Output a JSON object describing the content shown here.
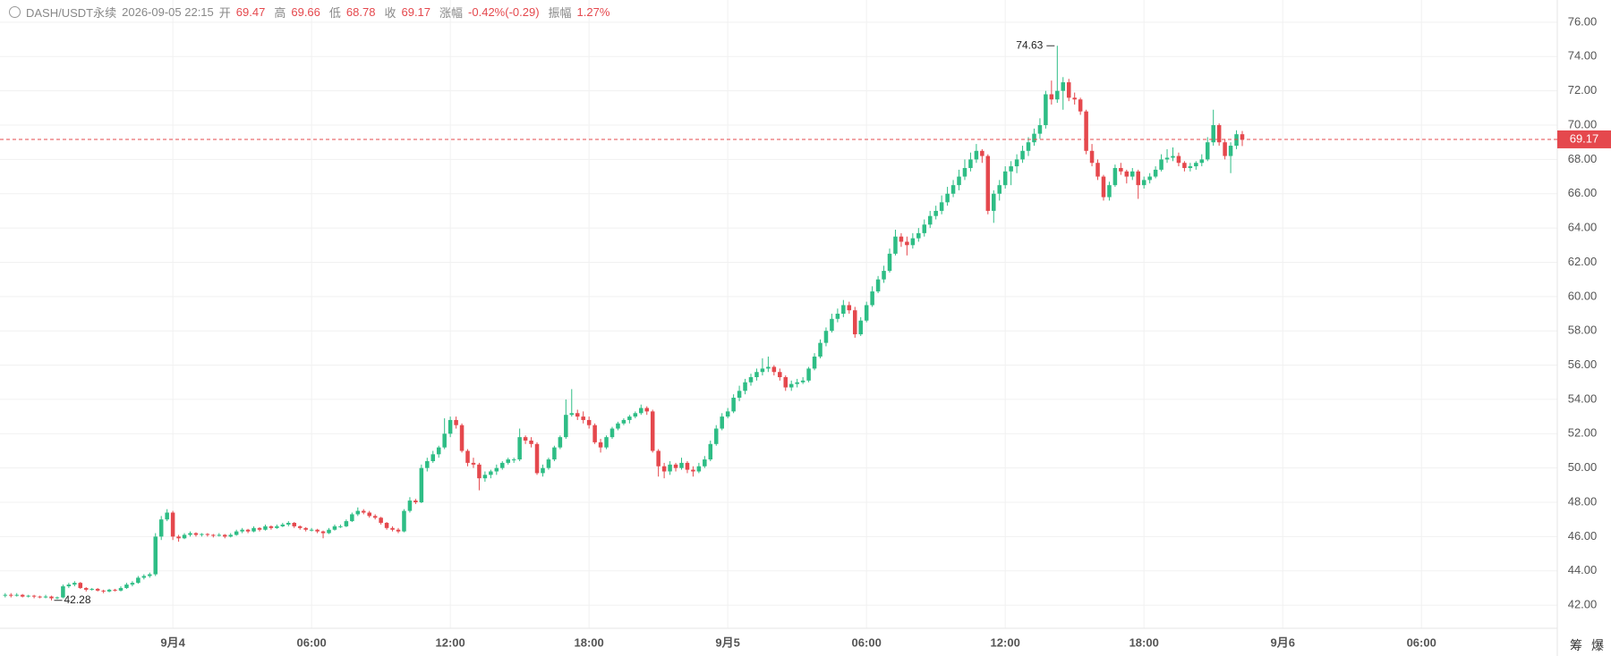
{
  "header": {
    "symbol": "DASH/USDT永续",
    "time": "2026-09-05 22:15",
    "fields": [
      {
        "label": "开",
        "value": "69.47"
      },
      {
        "label": "高",
        "value": "69.66"
      },
      {
        "label": "低",
        "value": "68.78"
      },
      {
        "label": "收",
        "value": "69.17"
      },
      {
        "label": "涨幅",
        "value": "-0.42%(-0.29)"
      },
      {
        "label": "振幅",
        "value": "1.27%"
      }
    ]
  },
  "footer_buttons": [
    "筹",
    "爆"
  ],
  "chart_data": {
    "type": "candlestick",
    "up_color": "#2ebd85",
    "down_color": "#e5484d",
    "grid": true,
    "xlim": [
      -0.9,
      268.5
    ],
    "ylim": [
      40.65,
      77.3
    ],
    "xticks": [
      {
        "value": 29,
        "label": "9月4"
      },
      {
        "value": 53,
        "label": "06:00"
      },
      {
        "value": 77,
        "label": "12:00"
      },
      {
        "value": 101,
        "label": "18:00"
      },
      {
        "value": 125,
        "label": "9月5"
      },
      {
        "value": 149,
        "label": "06:00"
      },
      {
        "value": 173,
        "label": "12:00"
      },
      {
        "value": 197,
        "label": "18:00"
      },
      {
        "value": 221,
        "label": "9月6"
      },
      {
        "value": 245,
        "label": "06:00"
      }
    ],
    "yticks": [
      {
        "value": 42,
        "label": "42.00"
      },
      {
        "value": 44,
        "label": "44.00"
      },
      {
        "value": 46,
        "label": "46.00"
      },
      {
        "value": 48,
        "label": "48.00"
      },
      {
        "value": 50,
        "label": "50.00"
      },
      {
        "value": 52,
        "label": "52.00"
      },
      {
        "value": 54,
        "label": "54.00"
      },
      {
        "value": 56,
        "label": "56.00"
      },
      {
        "value": 58,
        "label": "58.00"
      },
      {
        "value": 60,
        "label": "60.00"
      },
      {
        "value": 62,
        "label": "62.00"
      },
      {
        "value": 64,
        "label": "64.00"
      },
      {
        "value": 66,
        "label": "66.00"
      },
      {
        "value": 68,
        "label": "68.00"
      },
      {
        "value": 70,
        "label": "70.00"
      },
      {
        "value": 72,
        "label": "72.00"
      },
      {
        "value": 74,
        "label": "74.00"
      },
      {
        "value": 76,
        "label": "76.00"
      }
    ],
    "candles": [
      [
        42.55,
        42.7,
        42.45,
        42.6
      ],
      [
        42.6,
        42.7,
        42.45,
        42.55
      ],
      [
        42.55,
        42.7,
        42.5,
        42.6
      ],
      [
        42.6,
        42.65,
        42.45,
        42.5
      ],
      [
        42.5,
        42.6,
        42.45,
        42.55
      ],
      [
        42.55,
        42.6,
        42.4,
        42.5
      ],
      [
        42.5,
        42.55,
        42.4,
        42.45
      ],
      [
        42.45,
        42.6,
        42.4,
        42.5
      ],
      [
        42.5,
        42.55,
        42.28,
        42.4
      ],
      [
        42.4,
        42.5,
        42.35,
        42.45
      ],
      [
        42.45,
        43.2,
        42.4,
        43.1
      ],
      [
        43.1,
        43.3,
        43.0,
        43.2
      ],
      [
        43.2,
        43.4,
        43.1,
        43.3
      ],
      [
        43.3,
        43.35,
        42.95,
        43.0
      ],
      [
        43.0,
        43.05,
        42.8,
        42.9
      ],
      [
        42.9,
        43.0,
        42.85,
        42.95
      ],
      [
        42.95,
        43.0,
        42.8,
        42.85
      ],
      [
        42.85,
        42.9,
        42.7,
        42.8
      ],
      [
        42.8,
        42.95,
        42.75,
        42.9
      ],
      [
        42.9,
        42.95,
        42.8,
        42.85
      ],
      [
        42.85,
        43.1,
        42.8,
        43.0
      ],
      [
        43.0,
        43.3,
        42.95,
        43.2
      ],
      [
        43.2,
        43.4,
        43.1,
        43.3
      ],
      [
        43.3,
        43.7,
        43.25,
        43.6
      ],
      [
        43.6,
        43.8,
        43.5,
        43.7
      ],
      [
        43.7,
        43.9,
        43.6,
        43.8
      ],
      [
        43.8,
        46.2,
        43.7,
        46.0
      ],
      [
        46.0,
        47.2,
        45.8,
        47.0
      ],
      [
        47.0,
        47.6,
        46.9,
        47.4
      ],
      [
        47.4,
        47.5,
        45.8,
        46.0
      ],
      [
        46.0,
        46.1,
        45.7,
        45.9
      ],
      [
        45.9,
        46.2,
        45.85,
        46.1
      ],
      [
        46.1,
        46.3,
        46.0,
        46.2
      ],
      [
        46.2,
        46.25,
        46.0,
        46.1
      ],
      [
        46.1,
        46.2,
        46.0,
        46.15
      ],
      [
        46.15,
        46.2,
        46.0,
        46.1
      ],
      [
        46.1,
        46.15,
        45.95,
        46.05
      ],
      [
        46.05,
        46.2,
        46.0,
        46.1
      ],
      [
        46.1,
        46.15,
        45.9,
        46.0
      ],
      [
        46.0,
        46.2,
        45.95,
        46.1
      ],
      [
        46.1,
        46.4,
        46.05,
        46.3
      ],
      [
        46.3,
        46.5,
        46.2,
        46.4
      ],
      [
        46.4,
        46.45,
        46.2,
        46.3
      ],
      [
        46.3,
        46.6,
        46.25,
        46.5
      ],
      [
        46.5,
        46.55,
        46.3,
        46.4
      ],
      [
        46.4,
        46.7,
        46.35,
        46.6
      ],
      [
        46.6,
        46.65,
        46.4,
        46.5
      ],
      [
        46.5,
        46.7,
        46.45,
        46.6
      ],
      [
        46.6,
        46.8,
        46.55,
        46.7
      ],
      [
        46.7,
        46.9,
        46.6,
        46.8
      ],
      [
        46.8,
        46.85,
        46.5,
        46.6
      ],
      [
        46.6,
        46.65,
        46.4,
        46.5
      ],
      [
        46.5,
        46.55,
        46.3,
        46.4
      ],
      [
        46.4,
        46.5,
        46.3,
        46.4
      ],
      [
        46.4,
        46.45,
        46.2,
        46.3
      ],
      [
        46.3,
        46.35,
        45.9,
        46.2
      ],
      [
        46.2,
        46.5,
        46.15,
        46.4
      ],
      [
        46.4,
        46.7,
        46.35,
        46.6
      ],
      [
        46.6,
        46.7,
        46.5,
        46.6
      ],
      [
        46.6,
        47.0,
        46.55,
        46.9
      ],
      [
        46.9,
        47.4,
        46.85,
        47.3
      ],
      [
        47.3,
        47.7,
        47.2,
        47.5
      ],
      [
        47.5,
        47.6,
        47.3,
        47.4
      ],
      [
        47.4,
        47.5,
        47.1,
        47.2
      ],
      [
        47.2,
        47.3,
        47.0,
        47.1
      ],
      [
        47.1,
        47.15,
        46.7,
        46.8
      ],
      [
        46.8,
        46.85,
        46.4,
        46.5
      ],
      [
        46.5,
        46.6,
        46.3,
        46.4
      ],
      [
        46.4,
        46.5,
        46.2,
        46.3
      ],
      [
        46.3,
        47.6,
        46.25,
        47.5
      ],
      [
        47.5,
        48.3,
        47.4,
        48.1
      ],
      [
        48.1,
        48.2,
        47.9,
        48.0
      ],
      [
        48.0,
        50.2,
        47.95,
        50.0
      ],
      [
        50.0,
        50.6,
        49.8,
        50.4
      ],
      [
        50.4,
        51.0,
        50.3,
        50.8
      ],
      [
        50.8,
        51.3,
        50.6,
        51.2
      ],
      [
        51.2,
        52.9,
        51.1,
        52.0
      ],
      [
        52.0,
        53.0,
        51.8,
        52.8
      ],
      [
        52.8,
        53.0,
        52.3,
        52.5
      ],
      [
        52.5,
        52.6,
        50.9,
        51.0
      ],
      [
        51.0,
        51.1,
        50.1,
        50.3
      ],
      [
        50.3,
        50.6,
        50.0,
        50.2
      ],
      [
        50.2,
        50.3,
        48.7,
        49.4
      ],
      [
        49.4,
        49.8,
        49.2,
        49.6
      ],
      [
        49.6,
        49.9,
        49.4,
        49.8
      ],
      [
        49.8,
        50.2,
        49.6,
        50.0
      ],
      [
        50.0,
        50.4,
        49.9,
        50.3
      ],
      [
        50.3,
        50.6,
        50.2,
        50.5
      ],
      [
        50.5,
        50.6,
        50.3,
        50.5
      ],
      [
        50.5,
        52.3,
        50.4,
        51.8
      ],
      [
        51.8,
        51.9,
        51.4,
        51.6
      ],
      [
        51.6,
        51.8,
        51.2,
        51.4
      ],
      [
        51.4,
        51.5,
        49.6,
        49.7
      ],
      [
        49.7,
        50.2,
        49.5,
        50.0
      ],
      [
        50.0,
        50.6,
        49.9,
        50.5
      ],
      [
        50.5,
        51.3,
        50.4,
        51.2
      ],
      [
        51.2,
        51.9,
        51.1,
        51.8
      ],
      [
        51.8,
        54.0,
        51.7,
        53.1
      ],
      [
        53.1,
        54.6,
        53.0,
        53.2
      ],
      [
        53.2,
        53.4,
        52.8,
        53.0
      ],
      [
        53.0,
        53.3,
        52.6,
        52.8
      ],
      [
        52.8,
        53.0,
        52.3,
        52.5
      ],
      [
        52.5,
        52.6,
        51.4,
        51.5
      ],
      [
        51.5,
        51.7,
        50.9,
        51.2
      ],
      [
        51.2,
        51.9,
        51.1,
        51.8
      ],
      [
        51.8,
        52.4,
        51.7,
        52.3
      ],
      [
        52.3,
        52.7,
        52.2,
        52.6
      ],
      [
        52.6,
        52.9,
        52.5,
        52.8
      ],
      [
        52.8,
        53.1,
        52.6,
        53.0
      ],
      [
        53.0,
        53.3,
        52.9,
        53.2
      ],
      [
        53.2,
        53.7,
        53.1,
        53.5
      ],
      [
        53.5,
        53.6,
        53.1,
        53.3
      ],
      [
        53.3,
        53.4,
        50.9,
        51.0
      ],
      [
        51.0,
        51.1,
        49.5,
        50.1
      ],
      [
        50.1,
        50.3,
        49.4,
        49.8
      ],
      [
        49.8,
        50.4,
        49.6,
        50.2
      ],
      [
        50.2,
        50.3,
        49.8,
        50.0
      ],
      [
        50.0,
        50.6,
        49.9,
        50.3
      ],
      [
        50.3,
        50.4,
        49.7,
        49.9
      ],
      [
        49.9,
        50.1,
        49.5,
        49.8
      ],
      [
        49.8,
        50.3,
        49.7,
        50.1
      ],
      [
        50.1,
        50.7,
        50.0,
        50.5
      ],
      [
        50.5,
        51.6,
        50.4,
        51.4
      ],
      [
        51.4,
        52.5,
        51.3,
        52.3
      ],
      [
        52.3,
        53.2,
        52.2,
        53.0
      ],
      [
        53.0,
        53.5,
        52.9,
        53.3
      ],
      [
        53.3,
        54.3,
        53.2,
        54.1
      ],
      [
        54.1,
        54.8,
        53.9,
        54.5
      ],
      [
        54.5,
        55.2,
        54.3,
        55.0
      ],
      [
        55.0,
        55.5,
        54.8,
        55.3
      ],
      [
        55.3,
        55.8,
        55.1,
        55.6
      ],
      [
        55.6,
        56.4,
        55.4,
        55.8
      ],
      [
        55.8,
        56.5,
        55.6,
        55.9
      ],
      [
        55.9,
        56.0,
        55.4,
        55.6
      ],
      [
        55.6,
        55.8,
        55.1,
        55.3
      ],
      [
        55.3,
        55.4,
        54.5,
        54.7
      ],
      [
        54.7,
        55.1,
        54.5,
        54.9
      ],
      [
        54.9,
        55.2,
        54.7,
        55.0
      ],
      [
        55.0,
        55.3,
        54.9,
        55.1
      ],
      [
        55.1,
        55.9,
        55.0,
        55.8
      ],
      [
        55.8,
        56.7,
        55.7,
        56.5
      ],
      [
        56.5,
        57.5,
        56.4,
        57.3
      ],
      [
        57.3,
        58.2,
        57.1,
        58.0
      ],
      [
        58.0,
        59.0,
        57.9,
        58.7
      ],
      [
        58.7,
        59.3,
        58.5,
        59.0
      ],
      [
        59.0,
        59.8,
        58.8,
        59.5
      ],
      [
        59.5,
        59.7,
        59.0,
        59.2
      ],
      [
        59.2,
        59.4,
        57.6,
        57.8
      ],
      [
        57.8,
        58.8,
        57.7,
        58.6
      ],
      [
        58.6,
        59.7,
        58.5,
        59.5
      ],
      [
        59.5,
        60.6,
        59.4,
        60.3
      ],
      [
        60.3,
        61.2,
        60.2,
        61.0
      ],
      [
        61.0,
        61.8,
        60.8,
        61.5
      ],
      [
        61.5,
        62.8,
        61.4,
        62.5
      ],
      [
        62.5,
        63.9,
        62.4,
        63.5
      ],
      [
        63.5,
        63.7,
        62.9,
        63.2
      ],
      [
        63.2,
        63.5,
        62.4,
        63.0
      ],
      [
        63.0,
        63.7,
        62.8,
        63.4
      ],
      [
        63.4,
        64.0,
        63.2,
        63.7
      ],
      [
        63.7,
        64.5,
        63.5,
        64.2
      ],
      [
        64.2,
        65.0,
        64.0,
        64.7
      ],
      [
        64.7,
        65.3,
        64.5,
        65.0
      ],
      [
        65.0,
        65.9,
        64.8,
        65.5
      ],
      [
        65.5,
        66.4,
        65.3,
        66.0
      ],
      [
        66.0,
        66.8,
        65.8,
        66.5
      ],
      [
        66.5,
        67.4,
        66.2,
        67.0
      ],
      [
        67.0,
        68.0,
        66.8,
        67.5
      ],
      [
        67.5,
        68.4,
        67.3,
        68.0
      ],
      [
        68.0,
        68.9,
        67.8,
        68.5
      ],
      [
        68.5,
        68.6,
        67.8,
        68.2
      ],
      [
        68.2,
        68.3,
        64.8,
        65.0
      ],
      [
        65.0,
        66.2,
        64.3,
        66.0
      ],
      [
        66.0,
        66.8,
        65.6,
        66.5
      ],
      [
        66.5,
        67.6,
        66.3,
        67.3
      ],
      [
        67.3,
        67.9,
        66.5,
        67.6
      ],
      [
        67.6,
        68.3,
        67.2,
        68.0
      ],
      [
        68.0,
        68.8,
        67.8,
        68.5
      ],
      [
        68.5,
        69.3,
        68.2,
        69.0
      ],
      [
        69.0,
        69.8,
        68.8,
        69.5
      ],
      [
        69.5,
        70.4,
        69.2,
        70.0
      ],
      [
        70.0,
        72.0,
        69.8,
        71.8
      ],
      [
        71.8,
        72.6,
        71.2,
        71.5
      ],
      [
        71.5,
        74.63,
        71.3,
        72.0
      ],
      [
        72.0,
        72.8,
        70.9,
        72.5
      ],
      [
        72.5,
        72.7,
        71.4,
        71.6
      ],
      [
        71.6,
        71.9,
        71.2,
        71.5
      ],
      [
        71.5,
        71.6,
        70.6,
        70.8
      ],
      [
        70.8,
        70.9,
        68.3,
        68.5
      ],
      [
        68.5,
        68.9,
        67.6,
        67.8
      ],
      [
        67.8,
        68.0,
        66.8,
        67.0
      ],
      [
        67.0,
        67.1,
        65.6,
        65.8
      ],
      [
        65.8,
        66.7,
        65.6,
        66.5
      ],
      [
        66.5,
        67.7,
        66.4,
        67.5
      ],
      [
        67.5,
        67.8,
        67.1,
        67.3
      ],
      [
        67.3,
        67.4,
        66.6,
        67.0
      ],
      [
        67.0,
        67.5,
        66.8,
        67.3
      ],
      [
        67.3,
        67.4,
        65.7,
        66.5
      ],
      [
        66.5,
        67.0,
        66.3,
        66.8
      ],
      [
        66.8,
        67.2,
        66.6,
        67.0
      ],
      [
        67.0,
        67.6,
        66.9,
        67.4
      ],
      [
        67.4,
        68.3,
        67.3,
        68.0
      ],
      [
        68.0,
        68.6,
        67.8,
        68.1
      ],
      [
        68.1,
        68.7,
        67.9,
        68.2
      ],
      [
        68.2,
        68.4,
        67.6,
        67.8
      ],
      [
        67.8,
        67.9,
        67.3,
        67.5
      ],
      [
        67.5,
        67.8,
        67.3,
        67.6
      ],
      [
        67.6,
        67.9,
        67.4,
        67.8
      ],
      [
        67.8,
        68.3,
        67.6,
        68.0
      ],
      [
        68.0,
        69.3,
        67.9,
        69.0
      ],
      [
        69.0,
        70.9,
        68.8,
        70.0
      ],
      [
        70.0,
        70.1,
        68.8,
        69.0
      ],
      [
        69.0,
        69.2,
        68.0,
        68.2
      ],
      [
        68.2,
        69.0,
        67.2,
        68.8
      ],
      [
        68.8,
        69.7,
        68.6,
        69.47
      ],
      [
        69.47,
        69.66,
        68.78,
        69.17
      ]
    ]
  }
}
